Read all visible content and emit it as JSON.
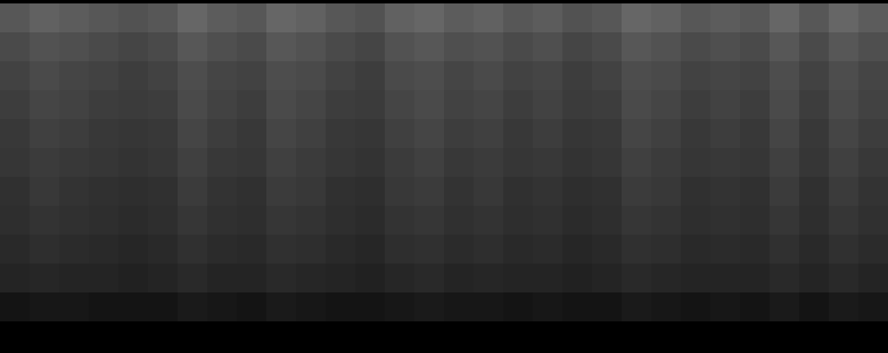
{
  "chart_data": {
    "type": "heatmap",
    "tick_labels": false,
    "zlim": [
      0,
      1
    ],
    "cells": [
      [
        0.34,
        0.38,
        0.36,
        0.34,
        0.32,
        0.34,
        0.4,
        0.36,
        0.34,
        0.4,
        0.38,
        0.34,
        0.32,
        0.38,
        0.4,
        0.36,
        0.38,
        0.34,
        0.36,
        0.32,
        0.34,
        0.4,
        0.38,
        0.34,
        0.36,
        0.34,
        0.4,
        0.34,
        0.4,
        0.36
      ],
      [
        0.29,
        0.32,
        0.31,
        0.29,
        0.27,
        0.29,
        0.34,
        0.31,
        0.29,
        0.34,
        0.32,
        0.29,
        0.27,
        0.32,
        0.34,
        0.31,
        0.32,
        0.29,
        0.31,
        0.27,
        0.29,
        0.34,
        0.32,
        0.29,
        0.31,
        0.29,
        0.34,
        0.29,
        0.34,
        0.31
      ],
      [
        0.26,
        0.29,
        0.27,
        0.26,
        0.24,
        0.26,
        0.3,
        0.27,
        0.26,
        0.3,
        0.29,
        0.26,
        0.24,
        0.29,
        0.3,
        0.27,
        0.29,
        0.26,
        0.27,
        0.24,
        0.26,
        0.3,
        0.29,
        0.26,
        0.27,
        0.26,
        0.3,
        0.26,
        0.3,
        0.27
      ],
      [
        0.24,
        0.27,
        0.26,
        0.24,
        0.23,
        0.24,
        0.29,
        0.26,
        0.24,
        0.29,
        0.27,
        0.24,
        0.23,
        0.27,
        0.29,
        0.26,
        0.27,
        0.24,
        0.26,
        0.23,
        0.24,
        0.29,
        0.27,
        0.24,
        0.26,
        0.24,
        0.29,
        0.24,
        0.29,
        0.26
      ],
      [
        0.22,
        0.25,
        0.24,
        0.22,
        0.21,
        0.22,
        0.27,
        0.24,
        0.22,
        0.27,
        0.25,
        0.22,
        0.21,
        0.25,
        0.27,
        0.24,
        0.25,
        0.22,
        0.24,
        0.21,
        0.22,
        0.27,
        0.25,
        0.22,
        0.24,
        0.22,
        0.27,
        0.22,
        0.27,
        0.24
      ],
      [
        0.21,
        0.23,
        0.22,
        0.21,
        0.2,
        0.21,
        0.25,
        0.22,
        0.21,
        0.25,
        0.23,
        0.21,
        0.2,
        0.23,
        0.25,
        0.22,
        0.23,
        0.21,
        0.22,
        0.2,
        0.21,
        0.25,
        0.23,
        0.21,
        0.22,
        0.21,
        0.25,
        0.21,
        0.25,
        0.22
      ],
      [
        0.19,
        0.22,
        0.2,
        0.19,
        0.18,
        0.19,
        0.23,
        0.2,
        0.19,
        0.23,
        0.22,
        0.19,
        0.18,
        0.22,
        0.23,
        0.2,
        0.22,
        0.19,
        0.2,
        0.18,
        0.19,
        0.23,
        0.22,
        0.19,
        0.2,
        0.19,
        0.23,
        0.19,
        0.23,
        0.2
      ],
      [
        0.18,
        0.2,
        0.19,
        0.18,
        0.17,
        0.18,
        0.21,
        0.19,
        0.18,
        0.21,
        0.2,
        0.18,
        0.17,
        0.2,
        0.21,
        0.19,
        0.2,
        0.18,
        0.19,
        0.17,
        0.18,
        0.21,
        0.2,
        0.18,
        0.19,
        0.18,
        0.21,
        0.18,
        0.21,
        0.19
      ],
      [
        0.16,
        0.18,
        0.17,
        0.16,
        0.15,
        0.16,
        0.19,
        0.17,
        0.16,
        0.19,
        0.18,
        0.16,
        0.15,
        0.18,
        0.19,
        0.17,
        0.18,
        0.16,
        0.17,
        0.15,
        0.16,
        0.19,
        0.18,
        0.16,
        0.17,
        0.16,
        0.19,
        0.16,
        0.19,
        0.17
      ],
      [
        0.14,
        0.15,
        0.14,
        0.14,
        0.13,
        0.14,
        0.16,
        0.14,
        0.14,
        0.16,
        0.15,
        0.14,
        0.13,
        0.15,
        0.16,
        0.14,
        0.15,
        0.14,
        0.14,
        0.13,
        0.14,
        0.16,
        0.15,
        0.14,
        0.14,
        0.14,
        0.16,
        0.14,
        0.16,
        0.14
      ],
      [
        0.08,
        0.09,
        0.09,
        0.08,
        0.08,
        0.08,
        0.1,
        0.09,
        0.08,
        0.1,
        0.09,
        0.08,
        0.08,
        0.09,
        0.1,
        0.09,
        0.09,
        0.08,
        0.09,
        0.08,
        0.08,
        0.1,
        0.09,
        0.08,
        0.09,
        0.08,
        0.1,
        0.08,
        0.1,
        0.09
      ],
      [
        0,
        0,
        0,
        0,
        0,
        0,
        0,
        0,
        0,
        0,
        0,
        0,
        0,
        0,
        0,
        0,
        0,
        0,
        0,
        0,
        0,
        0,
        0,
        0,
        0,
        0,
        0,
        0,
        0,
        0
      ]
    ]
  }
}
